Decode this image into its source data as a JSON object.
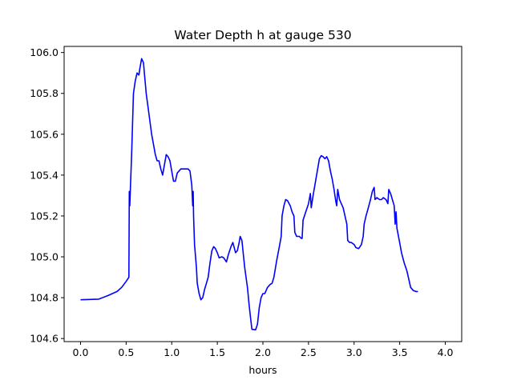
{
  "chart_data": {
    "type": "line",
    "title": "Water Depth h at gauge 530",
    "xlabel": "hours",
    "ylabel": "",
    "xlim": [
      -0.18,
      4.18
    ],
    "ylim": [
      104.585,
      106.03
    ],
    "xticks": [
      0.0,
      0.5,
      1.0,
      1.5,
      2.0,
      2.5,
      3.0,
      3.5,
      4.0
    ],
    "xtick_labels": [
      "0.0",
      "0.5",
      "1.0",
      "1.5",
      "2.0",
      "2.5",
      "3.0",
      "3.5",
      "4.0"
    ],
    "yticks": [
      104.6,
      104.8,
      105.0,
      105.2,
      105.4,
      105.6,
      105.8,
      106.0
    ],
    "ytick_labels": [
      "104.6",
      "104.8",
      "105.0",
      "105.2",
      "105.4",
      "105.6",
      "105.8",
      "106.0"
    ],
    "grid": false,
    "series": [
      {
        "name": "",
        "color": "#0000ff",
        "points": [
          [
            0.0,
            104.79
          ],
          [
            0.2,
            104.793
          ],
          [
            0.3,
            104.81
          ],
          [
            0.4,
            104.83
          ],
          [
            0.45,
            104.85
          ],
          [
            0.5,
            104.88
          ],
          [
            0.53,
            104.9
          ],
          [
            0.535,
            105.32
          ],
          [
            0.54,
            105.25
          ],
          [
            0.56,
            105.5
          ],
          [
            0.58,
            105.8
          ],
          [
            0.6,
            105.86
          ],
          [
            0.62,
            105.9
          ],
          [
            0.64,
            105.89
          ],
          [
            0.65,
            105.92
          ],
          [
            0.67,
            105.97
          ],
          [
            0.69,
            105.95
          ],
          [
            0.7,
            105.9
          ],
          [
            0.72,
            105.8
          ],
          [
            0.75,
            105.7
          ],
          [
            0.78,
            105.6
          ],
          [
            0.8,
            105.55
          ],
          [
            0.82,
            105.5
          ],
          [
            0.84,
            105.47
          ],
          [
            0.86,
            105.47
          ],
          [
            0.88,
            105.43
          ],
          [
            0.9,
            105.4
          ],
          [
            0.92,
            105.45
          ],
          [
            0.94,
            105.5
          ],
          [
            0.96,
            105.49
          ],
          [
            0.98,
            105.47
          ],
          [
            1.0,
            105.42
          ],
          [
            1.02,
            105.37
          ],
          [
            1.04,
            105.37
          ],
          [
            1.06,
            105.41
          ],
          [
            1.08,
            105.42
          ],
          [
            1.1,
            105.43
          ],
          [
            1.12,
            105.43
          ],
          [
            1.15,
            105.43
          ],
          [
            1.18,
            105.43
          ],
          [
            1.2,
            105.42
          ],
          [
            1.22,
            105.35
          ],
          [
            1.23,
            105.25
          ],
          [
            1.235,
            105.32
          ],
          [
            1.24,
            105.2
          ],
          [
            1.25,
            105.06
          ],
          [
            1.27,
            104.95
          ],
          [
            1.28,
            104.87
          ],
          [
            1.3,
            104.82
          ],
          [
            1.32,
            104.79
          ],
          [
            1.34,
            104.8
          ],
          [
            1.36,
            104.84
          ],
          [
            1.38,
            104.87
          ],
          [
            1.4,
            104.9
          ],
          [
            1.42,
            104.97
          ],
          [
            1.44,
            105.03
          ],
          [
            1.46,
            105.05
          ],
          [
            1.48,
            105.04
          ],
          [
            1.5,
            105.02
          ],
          [
            1.52,
            104.995
          ],
          [
            1.55,
            105.0
          ],
          [
            1.57,
            104.995
          ],
          [
            1.6,
            104.975
          ],
          [
            1.62,
            105.01
          ],
          [
            1.65,
            105.05
          ],
          [
            1.67,
            105.07
          ],
          [
            1.7,
            105.02
          ],
          [
            1.72,
            105.03
          ],
          [
            1.74,
            105.07
          ],
          [
            1.75,
            105.1
          ],
          [
            1.77,
            105.08
          ],
          [
            1.8,
            104.95
          ],
          [
            1.83,
            104.85
          ],
          [
            1.85,
            104.76
          ],
          [
            1.87,
            104.68
          ],
          [
            1.88,
            104.645
          ],
          [
            1.92,
            104.643
          ],
          [
            1.94,
            104.67
          ],
          [
            1.96,
            104.75
          ],
          [
            1.98,
            104.8
          ],
          [
            2.0,
            104.82
          ],
          [
            2.02,
            104.82
          ],
          [
            2.05,
            104.85
          ],
          [
            2.08,
            104.865
          ],
          [
            2.1,
            104.87
          ],
          [
            2.12,
            104.9
          ],
          [
            2.15,
            104.98
          ],
          [
            2.18,
            105.05
          ],
          [
            2.2,
            105.1
          ],
          [
            2.21,
            105.2
          ],
          [
            2.23,
            105.25
          ],
          [
            2.25,
            105.28
          ],
          [
            2.27,
            105.275
          ],
          [
            2.3,
            105.25
          ],
          [
            2.32,
            105.22
          ],
          [
            2.34,
            105.2
          ],
          [
            2.35,
            105.12
          ],
          [
            2.37,
            105.1
          ],
          [
            2.4,
            105.1
          ],
          [
            2.42,
            105.09
          ],
          [
            2.43,
            105.09
          ],
          [
            2.44,
            105.18
          ],
          [
            2.47,
            105.22
          ],
          [
            2.5,
            105.26
          ],
          [
            2.52,
            105.31
          ],
          [
            2.53,
            105.24
          ],
          [
            2.55,
            105.3
          ],
          [
            2.57,
            105.35
          ],
          [
            2.6,
            105.43
          ],
          [
            2.62,
            105.48
          ],
          [
            2.64,
            105.495
          ],
          [
            2.66,
            105.49
          ],
          [
            2.68,
            105.48
          ],
          [
            2.7,
            105.49
          ],
          [
            2.72,
            105.47
          ],
          [
            2.74,
            105.42
          ],
          [
            2.76,
            105.38
          ],
          [
            2.78,
            105.33
          ],
          [
            2.8,
            105.27
          ],
          [
            2.81,
            105.25
          ],
          [
            2.82,
            105.33
          ],
          [
            2.84,
            105.28
          ],
          [
            2.86,
            105.26
          ],
          [
            2.88,
            105.24
          ],
          [
            2.9,
            105.2
          ],
          [
            2.92,
            105.16
          ],
          [
            2.93,
            105.08
          ],
          [
            2.95,
            105.07
          ],
          [
            2.97,
            105.07
          ],
          [
            3.0,
            105.06
          ],
          [
            3.02,
            105.045
          ],
          [
            3.05,
            105.04
          ],
          [
            3.08,
            105.06
          ],
          [
            3.1,
            105.1
          ],
          [
            3.11,
            105.16
          ],
          [
            3.13,
            105.2
          ],
          [
            3.15,
            105.23
          ],
          [
            3.18,
            105.28
          ],
          [
            3.2,
            105.32
          ],
          [
            3.22,
            105.34
          ],
          [
            3.23,
            105.28
          ],
          [
            3.25,
            105.29
          ],
          [
            3.28,
            105.28
          ],
          [
            3.3,
            105.28
          ],
          [
            3.32,
            105.29
          ],
          [
            3.35,
            105.28
          ],
          [
            3.37,
            105.26
          ],
          [
            3.38,
            105.33
          ],
          [
            3.4,
            105.31
          ],
          [
            3.42,
            105.28
          ],
          [
            3.44,
            105.25
          ],
          [
            3.45,
            105.16
          ],
          [
            3.46,
            105.22
          ],
          [
            3.47,
            105.14
          ],
          [
            3.5,
            105.07
          ],
          [
            3.52,
            105.02
          ],
          [
            3.55,
            104.97
          ],
          [
            3.58,
            104.93
          ],
          [
            3.6,
            104.89
          ],
          [
            3.62,
            104.85
          ],
          [
            3.65,
            104.835
          ],
          [
            3.68,
            104.83
          ],
          [
            3.7,
            104.83
          ]
        ]
      }
    ]
  }
}
